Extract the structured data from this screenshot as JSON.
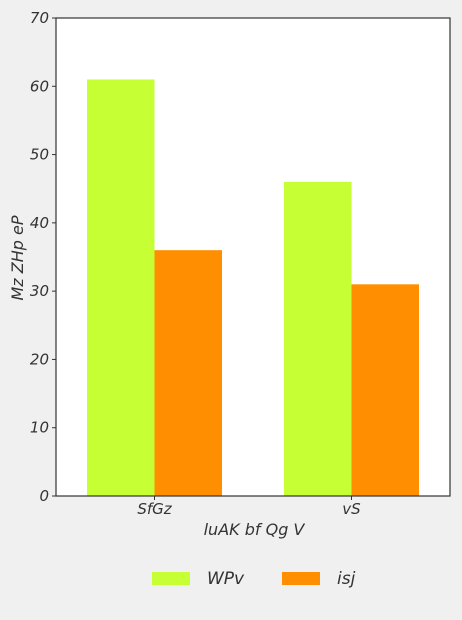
{
  "chart_data": {
    "type": "bar",
    "title": "",
    "xlabel": "luAK bf Qg V",
    "ylabel": "Mz  ZHp eP",
    "categories": [
      "SfGz",
      "vS"
    ],
    "series": [
      {
        "name": "WPv",
        "values": [
          61,
          46
        ],
        "color": "#c6ff33"
      },
      {
        "name": "isj",
        "values": [
          36,
          31
        ],
        "color": "#ff8f00"
      }
    ],
    "ylim": [
      0,
      70
    ],
    "yticks": [
      0,
      10,
      20,
      30,
      40,
      50,
      60,
      70
    ],
    "grid": false,
    "legend_position": "bottom-center"
  },
  "colors": {
    "background": "#f0f0f0",
    "plot_area": "#ffffff",
    "axis": "#333333"
  }
}
